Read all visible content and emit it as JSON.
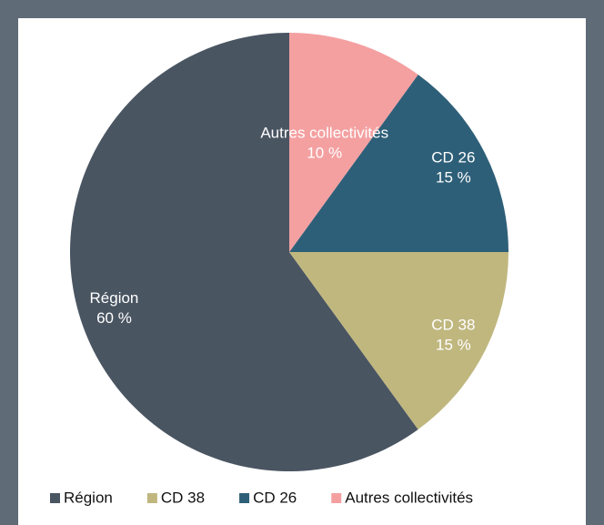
{
  "chart_data": {
    "type": "pie",
    "categories": [
      "Région",
      "CD 38",
      "CD 26",
      "Autres collectivités"
    ],
    "values": [
      60,
      15,
      15,
      10
    ],
    "value_labels": [
      "60 %",
      "15 %",
      "15 %",
      "10 %"
    ],
    "colors": [
      "#4a5562",
      "#c0b77f",
      "#2e5f78",
      "#f4a0a1"
    ],
    "legend": "bottom"
  }
}
